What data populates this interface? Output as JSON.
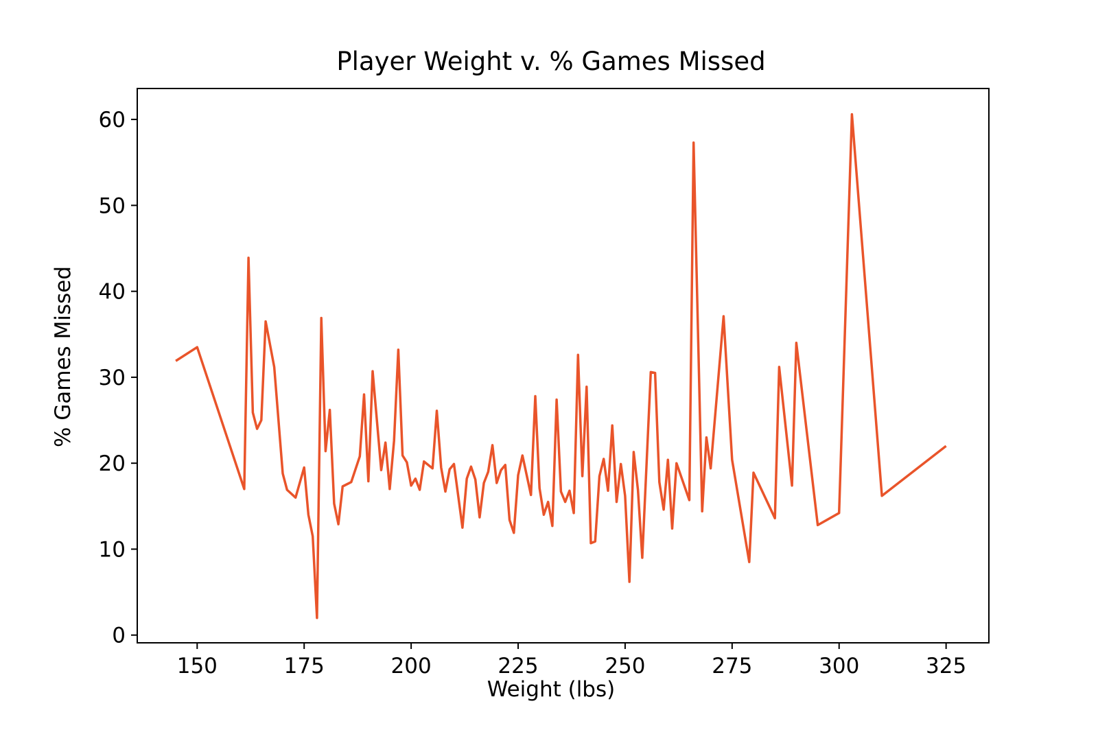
{
  "chart_data": {
    "type": "line",
    "title": "Player Weight v. % Games Missed",
    "xlabel": "Weight (lbs)",
    "ylabel": "% Games Missed",
    "xlim": [
      136,
      335
    ],
    "ylim": [
      -0.9,
      63.6
    ],
    "xticks": [
      150,
      175,
      200,
      225,
      250,
      275,
      300,
      325
    ],
    "yticks": [
      0,
      10,
      20,
      30,
      40,
      50,
      60
    ],
    "grid": false,
    "legend": "none",
    "line_color": "#e9542a",
    "series": [
      {
        "x": [
          145,
          150,
          161,
          162,
          163,
          164,
          165,
          166,
          168,
          170,
          171,
          173,
          175,
          176,
          177,
          178,
          179,
          180,
          181,
          182,
          183,
          184,
          186,
          188,
          189,
          190,
          191,
          193,
          194,
          195,
          196,
          197,
          198,
          199,
          200,
          201,
          202,
          203,
          205,
          206,
          207,
          208,
          209,
          210,
          212,
          213,
          214,
          215,
          216,
          217,
          218,
          219,
          220,
          221,
          222,
          223,
          224,
          225,
          226,
          228,
          229,
          230,
          231,
          232,
          233,
          234,
          235,
          236,
          237,
          238,
          239,
          240,
          241,
          242,
          243,
          244,
          245,
          246,
          247,
          248,
          249,
          250,
          251,
          252,
          253,
          254,
          256,
          257,
          258,
          259,
          260,
          261,
          262,
          265,
          266,
          268,
          269,
          270,
          273,
          275,
          279,
          280,
          285,
          286,
          289,
          290,
          295,
          300,
          303,
          310,
          325
        ],
        "y": [
          31.9,
          33.5,
          17.0,
          43.9,
          25.9,
          24.0,
          25.0,
          36.5,
          31.2,
          18.8,
          16.9,
          16.0,
          19.5,
          14.0,
          11.5,
          2.0,
          36.9,
          21.4,
          26.2,
          15.3,
          12.9,
          17.3,
          17.8,
          20.8,
          28.0,
          17.9,
          30.7,
          19.2,
          22.4,
          17.0,
          22.6,
          33.2,
          20.9,
          20.1,
          17.4,
          18.2,
          16.9,
          20.2,
          19.4,
          26.1,
          19.5,
          16.7,
          19.3,
          19.9,
          12.5,
          18.2,
          19.6,
          18.1,
          13.7,
          17.7,
          19.0,
          22.1,
          17.7,
          19.2,
          19.8,
          13.4,
          11.9,
          18.6,
          20.9,
          16.3,
          27.8,
          17.1,
          14.0,
          15.5,
          12.7,
          27.4,
          16.7,
          15.5,
          16.8,
          14.2,
          32.6,
          18.5,
          28.9,
          10.7,
          10.9,
          18.5,
          20.5,
          16.8,
          24.4,
          15.5,
          19.9,
          16.2,
          6.2,
          21.3,
          16.9,
          9.0,
          30.6,
          30.5,
          17.8,
          14.6,
          20.4,
          12.4,
          20.0,
          15.7,
          57.3,
          14.4,
          23.0,
          19.4,
          37.1,
          20.4,
          8.5,
          18.9,
          13.6,
          31.2,
          17.4,
          34.0,
          12.8,
          14.2,
          60.6,
          16.2,
          22.0
        ]
      }
    ]
  }
}
